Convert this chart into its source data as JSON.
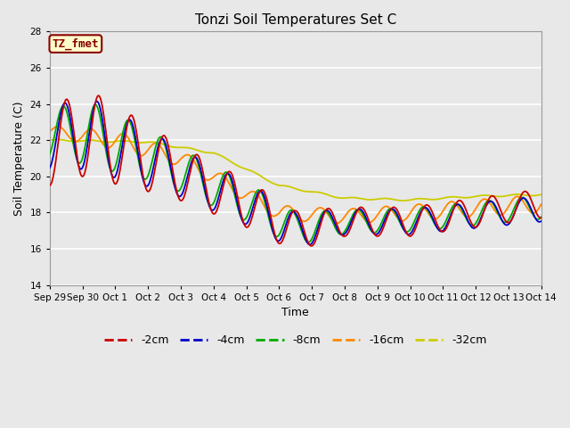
{
  "title": "Tonzi Soil Temperatures Set C",
  "xlabel": "Time",
  "ylabel": "Soil Temperature (C)",
  "ylim": [
    14,
    28
  ],
  "yticks": [
    14,
    16,
    18,
    20,
    22,
    24,
    26,
    28
  ],
  "annotation_text": "TZ_fmet",
  "annotation_bg": "#ffffcc",
  "annotation_border": "#8b0000",
  "series_colors": {
    "-2cm": "#cc0000",
    "-4cm": "#0000cc",
    "-8cm": "#00aa00",
    "-16cm": "#ff8800",
    "-32cm": "#cccc00"
  },
  "legend_labels": [
    "-2cm",
    "-4cm",
    "-8cm",
    "-16cm",
    "-32cm"
  ],
  "background_color": "#e8e8e8",
  "plot_bg": "#e8e8e8",
  "grid_color": "#ffffff",
  "tick_labels": [
    "Sep 29",
    "Sep 30",
    "Oct 1",
    "Oct 2",
    "Oct 3",
    "Oct 4",
    "Oct 5",
    "Oct 6",
    "Oct 7",
    "Oct 8",
    "Oct 9",
    "Oct 10",
    "Oct 11",
    "Oct 12",
    "Oct 13",
    "Oct 14"
  ],
  "n_points": 720
}
